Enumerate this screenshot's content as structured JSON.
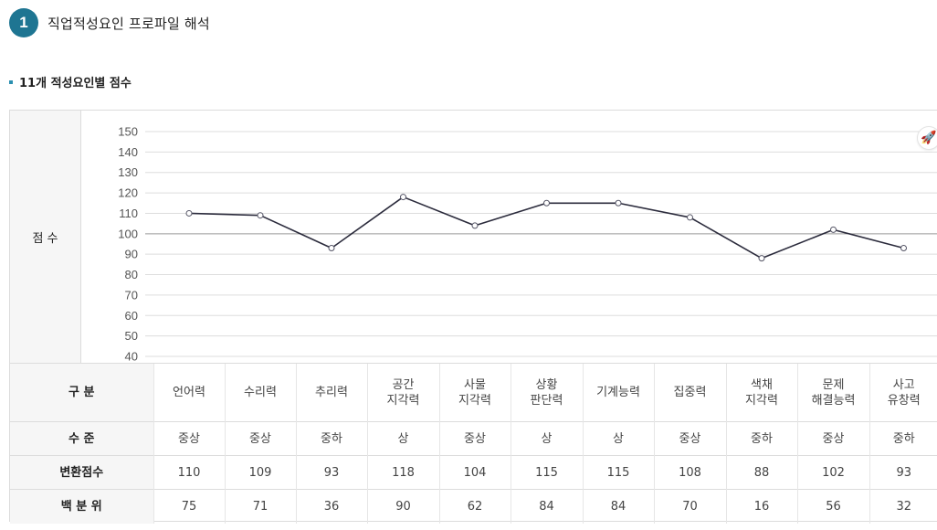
{
  "section": {
    "number": "1",
    "title": "직업적성요인 프로파일 해석"
  },
  "subsection": {
    "title": "11개 적성요인별 점수"
  },
  "chart_data": {
    "type": "line",
    "row_label": "점 수",
    "ylim": [
      40,
      150
    ],
    "yticks": [
      40,
      50,
      60,
      70,
      80,
      90,
      100,
      110,
      120,
      130,
      140,
      150
    ],
    "reference_line": 100,
    "categories": [
      "언어력",
      "수리력",
      "추리력",
      "공간 지각력",
      "사물 지각력",
      "상황 판단력",
      "기계능력",
      "집중력",
      "색채 지각력",
      "문제 해결능력",
      "사고 유창력"
    ],
    "series": [
      {
        "values": [
          110,
          109,
          93,
          118,
          104,
          115,
          115,
          108,
          88,
          102,
          93
        ]
      }
    ],
    "line_color": "#2b2b3c",
    "grid": true
  },
  "table": {
    "headers": [
      "구 분",
      "수 준",
      "변환점수",
      "백 분 위"
    ],
    "categories": [
      "언어력",
      "수리력",
      "추리력",
      "공간\n지각력",
      "사물\n지각력",
      "상황\n판단력",
      "기계능력",
      "집중력",
      "색채\n지각력",
      "문제\n해결능력",
      "사고\n유창력"
    ],
    "levels": [
      "중상",
      "중상",
      "중하",
      "상",
      "중상",
      "상",
      "상",
      "중상",
      "중하",
      "중상",
      "중하"
    ],
    "scores": [
      "110",
      "109",
      "93",
      "118",
      "104",
      "115",
      "115",
      "108",
      "88",
      "102",
      "93"
    ],
    "percentiles": [
      "75",
      "71",
      "36",
      "90",
      "62",
      "84",
      "84",
      "70",
      "16",
      "56",
      "32"
    ]
  },
  "icons": {
    "float_button": "rocket-icon",
    "float_glyph": "🚀"
  },
  "colors": {
    "accent": "#1e7592",
    "bullet": "#2a8fb0",
    "line": "#2b2b3c",
    "grid": "#dddddd",
    "reference": "#999999"
  }
}
